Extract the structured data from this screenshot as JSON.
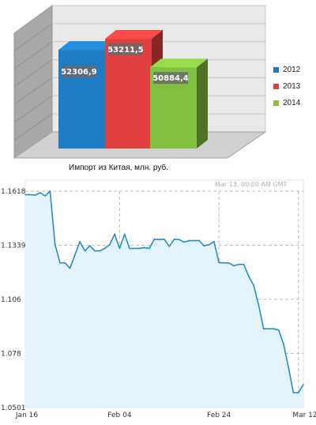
{
  "chart_data": [
    {
      "type": "bar",
      "title": "Импорт из Китая, млн. руб.",
      "categories": [
        "2012",
        "2013",
        "2014"
      ],
      "values": [
        52306.9,
        53211.5,
        50884.4
      ],
      "value_labels": [
        "52306,9",
        "53211,5",
        "50884,4"
      ],
      "colors": [
        "#1e7cc4",
        "#e04040",
        "#82c041"
      ],
      "legend_position": "right",
      "grid": true,
      "style": "3d"
    },
    {
      "type": "area",
      "x": [
        "Jan 16",
        "Jan 17",
        "Jan 18",
        "Jan 19",
        "Jan 20",
        "Jan 21",
        "Jan 22",
        "Jan 23",
        "Jan 24",
        "Jan 25",
        "Jan 26",
        "Jan 27",
        "Jan 28",
        "Jan 29",
        "Jan 30",
        "Jan 31",
        "Feb 01",
        "Feb 02",
        "Feb 03",
        "Feb 04",
        "Feb 05",
        "Feb 06",
        "Feb 07",
        "Feb 08",
        "Feb 09",
        "Feb 10",
        "Feb 11",
        "Feb 12",
        "Feb 13",
        "Feb 14",
        "Feb 15",
        "Feb 16",
        "Feb 17",
        "Feb 18",
        "Feb 19",
        "Feb 20",
        "Feb 21",
        "Feb 22",
        "Feb 23",
        "Feb 24",
        "Feb 25",
        "Feb 26",
        "Feb 27",
        "Feb 28",
        "Mar 01",
        "Mar 02",
        "Mar 03",
        "Mar 04",
        "Mar 05",
        "Mar 06",
        "Mar 07",
        "Mar 08",
        "Mar 09",
        "Mar 10",
        "Mar 11",
        "Mar 12",
        "Mar 13"
      ],
      "values": [
        1.16,
        1.16,
        1.1598,
        1.161,
        1.1594,
        1.1618,
        1.1342,
        1.1248,
        1.1248,
        1.122,
        1.129,
        1.1357,
        1.131,
        1.1336,
        1.131,
        1.131,
        1.1323,
        1.1342,
        1.1396,
        1.1323,
        1.1396,
        1.1323,
        1.1323,
        1.1323,
        1.1327,
        1.1323,
        1.137,
        1.1368,
        1.137,
        1.1333,
        1.137,
        1.1368,
        1.1355,
        1.1363,
        1.1363,
        1.1363,
        1.1336,
        1.1342,
        1.1358,
        1.125,
        1.1248,
        1.1248,
        1.1233,
        1.124,
        1.124,
        1.1178,
        1.1132,
        1.103,
        1.0908,
        1.0908,
        1.0908,
        1.0902,
        1.083,
        1.071,
        1.0578,
        1.0578,
        1.062
      ],
      "x_ticks": [
        "Jan 16",
        "Feb 04",
        "Feb 24",
        "Mar 12"
      ],
      "y_ticks": [
        "1.1618",
        "1.1339",
        "1.106",
        "1.078",
        "1.0501"
      ],
      "ylim": [
        1.0501,
        1.1618
      ],
      "tooltip_time": "Mar 13, 00:00 AM GMT",
      "line_color": "#2b8dbf",
      "fill_color": "#e2f3fb",
      "grid": true
    }
  ]
}
